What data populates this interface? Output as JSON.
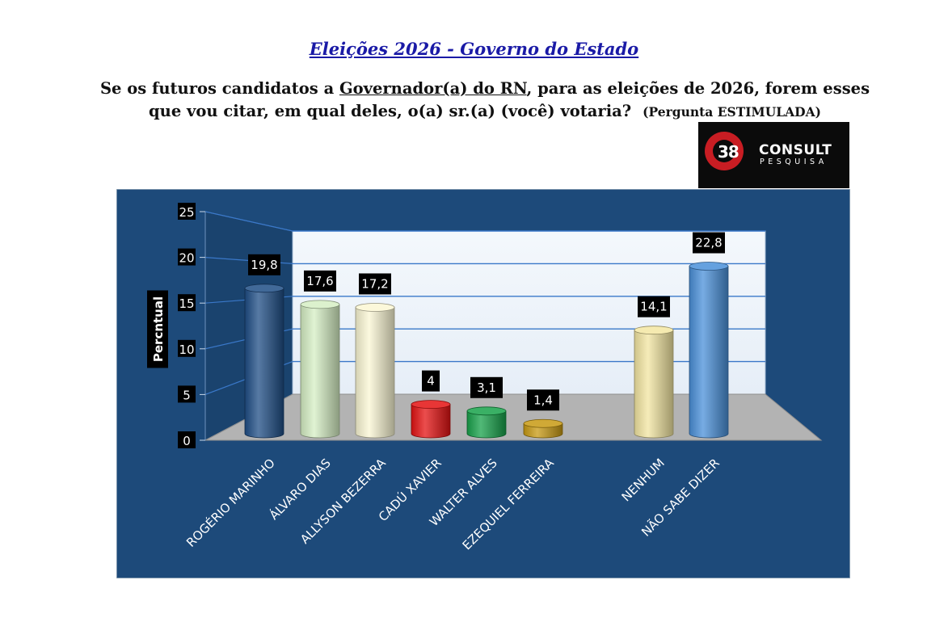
{
  "header": {
    "title": "Eleições 2026 - Governo do Estado",
    "question_part1": "Se os futuros candidatos a ",
    "question_highlight": "Governador(a) do RN",
    "question_part2": ", para as eleições de 2026, forem esses que vou citar, em qual deles, o(a) sr.(a) (você) votaria?",
    "question_note": "(Pergunta ESTIMULADA)"
  },
  "logo": {
    "number": "38",
    "brand": "CONSULT",
    "sub": "PESQUISA"
  },
  "colors": {
    "chart_background": "#1d4a7a",
    "back_wall": "#e6eef7",
    "floor": "#b3b3b3",
    "gridline": "#3a78c9",
    "label_box": "#000000"
  },
  "chart_data": {
    "type": "bar",
    "title": "",
    "xlabel": "",
    "ylabel": "Percntual",
    "ylim": [
      0,
      25
    ],
    "yticks": [
      0,
      5,
      10,
      15,
      20,
      25
    ],
    "categories": [
      "ROGÉRIO MARINHO",
      "ÁLVARO DIAS",
      "ALLYSON BEZERRA",
      "CADÚ XAVIER",
      "WALTER ALVES",
      "EZEQUIEL FERREIRA",
      "NENHUM",
      "NÃO SABE DIZER"
    ],
    "values": [
      19.8,
      17.6,
      17.2,
      4,
      3.1,
      1.4,
      14.1,
      22.8
    ],
    "value_labels": [
      "19,8",
      "17,6",
      "17,2",
      "4",
      "3,1",
      "1,4",
      "14,1",
      "22,8"
    ],
    "bar_colors": [
      "#1f4e86",
      "#d6efc4",
      "#fbf7d4",
      "#e41212",
      "#17a24a",
      "#c89a12",
      "#f3e6a2",
      "#4a90d9"
    ],
    "grid": true,
    "legend": "none",
    "style": "3d-cylinder"
  }
}
